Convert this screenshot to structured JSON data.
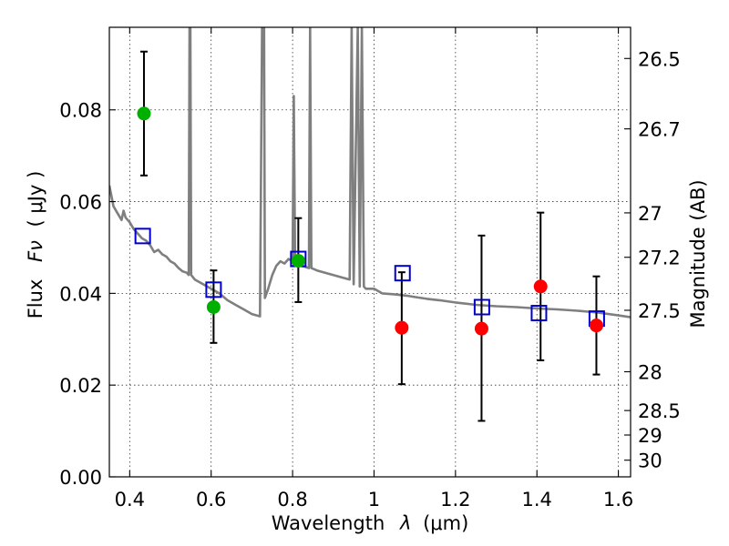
{
  "chart_data": {
    "type": "scatter",
    "xlabel_prefix": "Wavelength",
    "xlabel_symbol": "λ",
    "xlabel_unit": "(μm)",
    "ylabel_prefix": "Flux",
    "ylabel_symbol": "Fν",
    "ylabel_unit": "( μJy )",
    "y2label": "Magnitude (AB)",
    "xlim": [
      0.35,
      1.63
    ],
    "ylim": [
      0.0,
      0.098
    ],
    "x_ticks": [
      0.4,
      0.6,
      0.8,
      1.0,
      1.2,
      1.4,
      1.6
    ],
    "x_tick_labels": [
      "0.4",
      "0.6",
      "0.8",
      "1",
      "1.2",
      "1.4",
      "1.6"
    ],
    "y_ticks": [
      0.0,
      0.02,
      0.04,
      0.06,
      0.08
    ],
    "y_tick_labels": [
      "0.00",
      "0.02",
      "0.04",
      "0.06",
      "0.08"
    ],
    "mag_ticks": [
      "26.5",
      "26.7",
      "27",
      "27.2",
      "27.5",
      "28",
      "28.5",
      "29",
      "30"
    ],
    "grid": true,
    "colors": {
      "green_points": "#00b000",
      "red_points": "#ff0000",
      "model_squares": "#0000cc",
      "model_line": "#7f7f7f",
      "errorbars": "#000000"
    },
    "series": [
      {
        "marker": "circle",
        "color": "#00b000",
        "points": [
          {
            "x": 0.435,
            "y": 0.0792,
            "yerr_low": 0.0657,
            "yerr_high": 0.0927
          },
          {
            "x": 0.606,
            "y": 0.037,
            "yerr_low": 0.0292,
            "yerr_high": 0.045
          },
          {
            "x": 0.814,
            "y": 0.0471,
            "yerr_low": 0.0381,
            "yerr_high": 0.0564
          }
        ]
      },
      {
        "marker": "circle",
        "color": "#ff0000",
        "points": [
          {
            "x": 1.068,
            "y": 0.0325,
            "yerr_low": 0.0202,
            "yerr_high": 0.0446
          },
          {
            "x": 1.264,
            "y": 0.0323,
            "yerr_low": 0.0122,
            "yerr_high": 0.0526
          },
          {
            "x": 1.409,
            "y": 0.0415,
            "yerr_low": 0.0254,
            "yerr_high": 0.0576
          },
          {
            "x": 1.546,
            "y": 0.033,
            "yerr_low": 0.0223,
            "yerr_high": 0.0437
          }
        ]
      },
      {
        "marker": "open-square",
        "color": "#0000cc",
        "points": [
          {
            "x": 0.432,
            "y": 0.0525
          },
          {
            "x": 0.606,
            "y": 0.0408
          },
          {
            "x": 0.814,
            "y": 0.0475
          },
          {
            "x": 1.07,
            "y": 0.0444
          },
          {
            "x": 1.265,
            "y": 0.037
          },
          {
            "x": 1.405,
            "y": 0.0357
          },
          {
            "x": 1.547,
            "y": 0.0345
          }
        ]
      },
      {
        "marker": "line",
        "color": "#7f7f7f",
        "points": [
          [
            0.35,
            0.0635
          ],
          [
            0.36,
            0.059
          ],
          [
            0.37,
            0.0575
          ],
          [
            0.38,
            0.056
          ],
          [
            0.385,
            0.058
          ],
          [
            0.39,
            0.0565
          ],
          [
            0.4,
            0.0555
          ],
          [
            0.41,
            0.054
          ],
          [
            0.42,
            0.053
          ],
          [
            0.43,
            0.052
          ],
          [
            0.44,
            0.0515
          ],
          [
            0.45,
            0.0505
          ],
          [
            0.46,
            0.049
          ],
          [
            0.47,
            0.0495
          ],
          [
            0.48,
            0.0485
          ],
          [
            0.49,
            0.048
          ],
          [
            0.5,
            0.047
          ],
          [
            0.51,
            0.0465
          ],
          [
            0.52,
            0.0455
          ],
          [
            0.53,
            0.0448
          ],
          [
            0.54,
            0.0445
          ],
          [
            0.545,
            0.044
          ],
          [
            0.547,
            0.098
          ],
          [
            0.549,
            0.098
          ],
          [
            0.551,
            0.044
          ],
          [
            0.56,
            0.043
          ],
          [
            0.58,
            0.042
          ],
          [
            0.6,
            0.041
          ],
          [
            0.62,
            0.04
          ],
          [
            0.64,
            0.0385
          ],
          [
            0.66,
            0.0375
          ],
          [
            0.68,
            0.0365
          ],
          [
            0.7,
            0.0355
          ],
          [
            0.72,
            0.035
          ],
          [
            0.725,
            0.098
          ],
          [
            0.73,
            0.098
          ],
          [
            0.732,
            0.039
          ],
          [
            0.74,
            0.041
          ],
          [
            0.75,
            0.044
          ],
          [
            0.76,
            0.046
          ],
          [
            0.77,
            0.047
          ],
          [
            0.78,
            0.0465
          ],
          [
            0.79,
            0.0475
          ],
          [
            0.8,
            0.047
          ],
          [
            0.803,
            0.083
          ],
          [
            0.806,
            0.047
          ],
          [
            0.81,
            0.0465
          ],
          [
            0.82,
            0.046
          ],
          [
            0.83,
            0.0458
          ],
          [
            0.84,
            0.0455
          ],
          [
            0.843,
            0.098
          ],
          [
            0.846,
            0.0455
          ],
          [
            0.86,
            0.045
          ],
          [
            0.88,
            0.0445
          ],
          [
            0.9,
            0.044
          ],
          [
            0.92,
            0.0435
          ],
          [
            0.94,
            0.043
          ],
          [
            0.945,
            0.098
          ],
          [
            0.95,
            0.042
          ],
          [
            0.96,
            0.098
          ],
          [
            0.965,
            0.0415
          ],
          [
            0.97,
            0.098
          ],
          [
            0.975,
            0.0415
          ],
          [
            0.98,
            0.041
          ],
          [
            1.0,
            0.041
          ],
          [
            1.02,
            0.04
          ],
          [
            1.05,
            0.0398
          ],
          [
            1.08,
            0.0395
          ],
          [
            1.1,
            0.0392
          ],
          [
            1.13,
            0.0388
          ],
          [
            1.16,
            0.0385
          ],
          [
            1.2,
            0.038
          ],
          [
            1.25,
            0.0375
          ],
          [
            1.3,
            0.0372
          ],
          [
            1.35,
            0.037
          ],
          [
            1.4,
            0.0367
          ],
          [
            1.45,
            0.0365
          ],
          [
            1.5,
            0.0362
          ],
          [
            1.55,
            0.0358
          ],
          [
            1.6,
            0.0352
          ],
          [
            1.63,
            0.0348
          ]
        ]
      }
    ]
  }
}
